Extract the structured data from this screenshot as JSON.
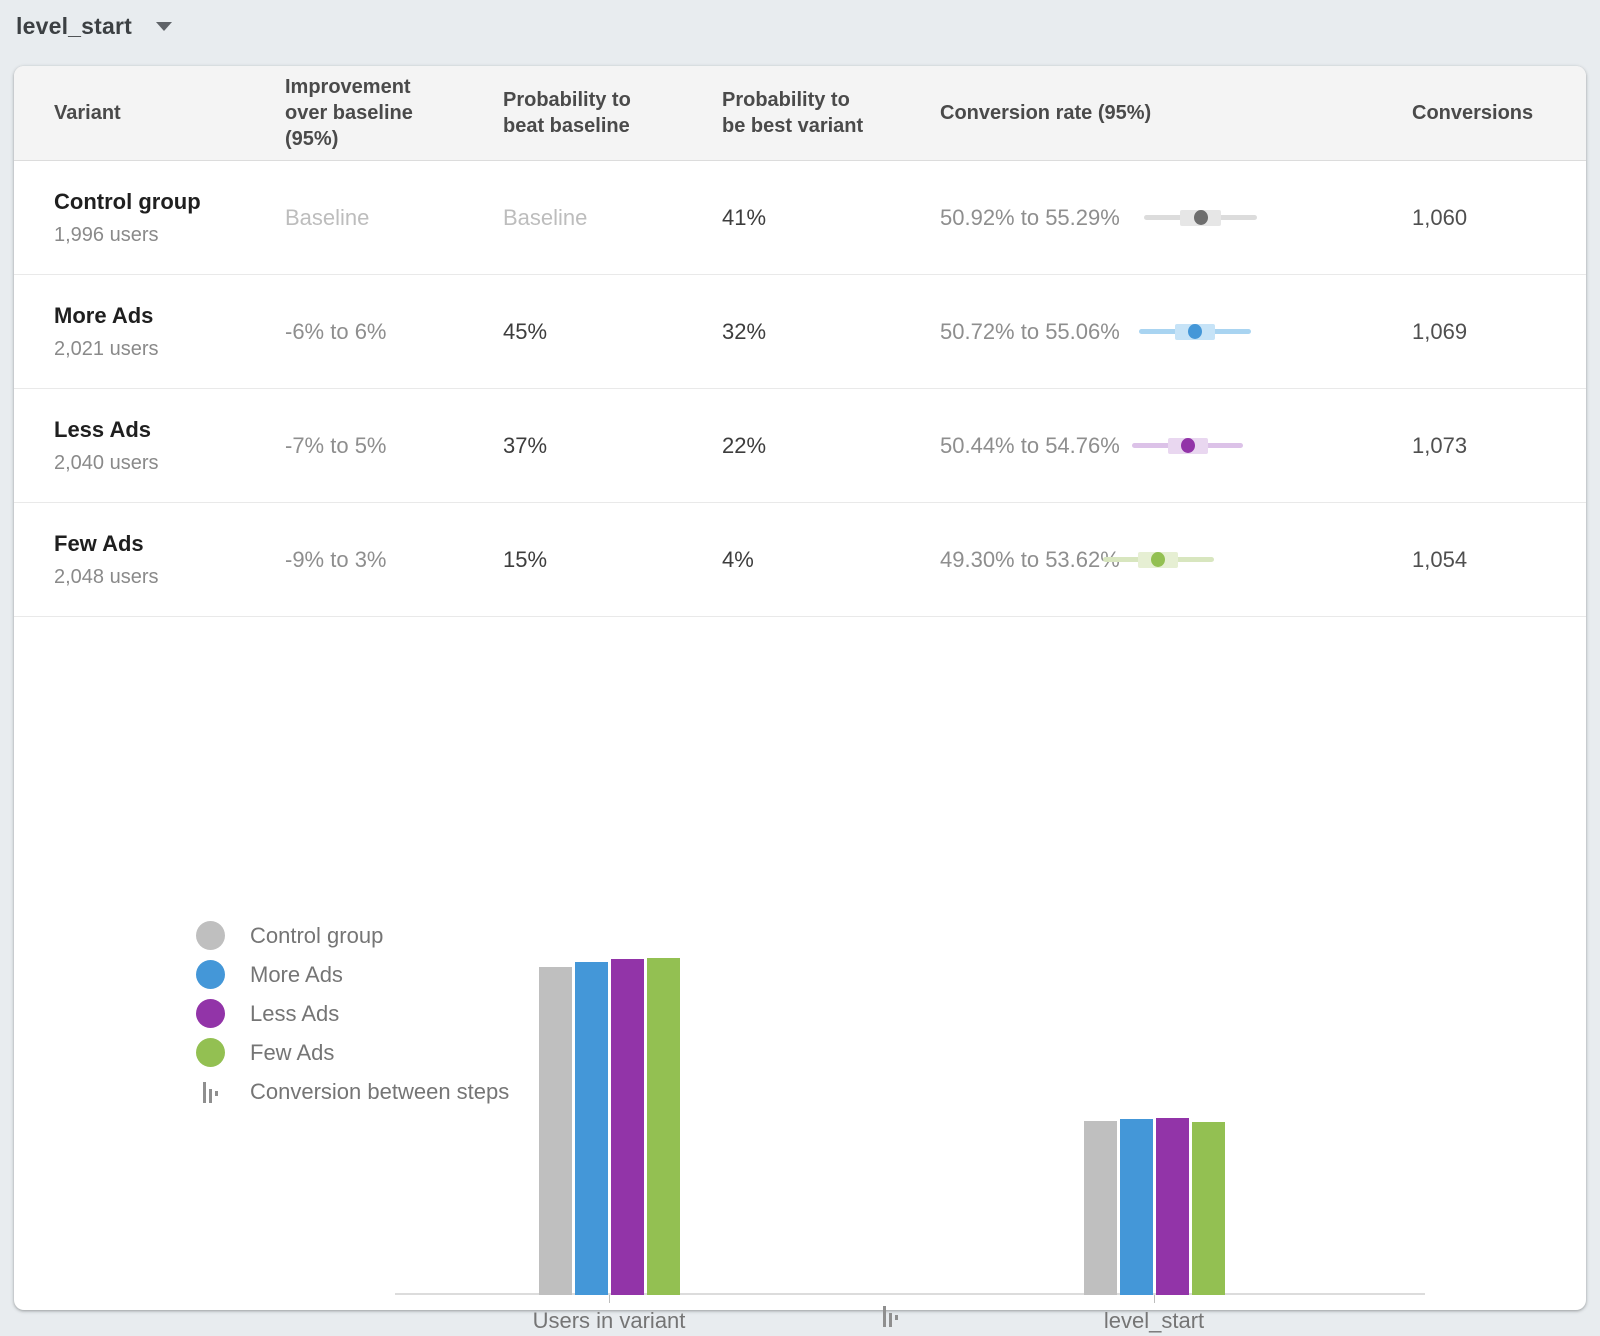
{
  "page": {
    "selector_label": "level_start"
  },
  "table": {
    "columns": [
      {
        "label": "Variant"
      },
      {
        "label": "Improvement over baseline (95%)"
      },
      {
        "label": "Probability to beat baseline"
      },
      {
        "label": "Probability to be best variant"
      },
      {
        "label": "Conversion rate (95%)"
      },
      {
        "label": "Conversions"
      }
    ],
    "ci_axis": {
      "min": 49.0,
      "max": 55.6
    },
    "rows": [
      {
        "variant": "Control group",
        "users": "1,996 users",
        "improvement": "Baseline",
        "prob_beat": "Baseline",
        "prob_best": "41%",
        "rate_range": "50.92% to 55.29%",
        "rate_low": 50.92,
        "rate_high": 55.29,
        "conversions": "1,060",
        "color": "#6e6e6e",
        "ci_line": "#dcdcdc",
        "ci_box": "#e6e6e6"
      },
      {
        "variant": "More Ads",
        "users": "2,021 users",
        "improvement": "-6% to 6%",
        "prob_beat": "45%",
        "prob_best": "32%",
        "rate_range": "50.72% to 55.06%",
        "rate_low": 50.72,
        "rate_high": 55.06,
        "conversions": "1,069",
        "color": "#4497d8",
        "ci_line": "#a9d4f1",
        "ci_box": "#c6e3f7"
      },
      {
        "variant": "Less Ads",
        "users": "2,040 users",
        "improvement": "-7% to 5%",
        "prob_beat": "37%",
        "prob_best": "22%",
        "rate_range": "50.44% to 54.76%",
        "rate_low": 50.44,
        "rate_high": 54.76,
        "conversions": "1,073",
        "color": "#9234a8",
        "ci_line": "#dcc2e8",
        "ci_box": "#e9d7f0"
      },
      {
        "variant": "Few Ads",
        "users": "2,048 users",
        "improvement": "-9% to 3%",
        "prob_beat": "15%",
        "prob_best": "4%",
        "rate_range": "49.30% to 53.62%",
        "rate_low": 49.3,
        "rate_high": 53.62,
        "conversions": "1,054",
        "color": "#93c052",
        "ci_line": "#d8e6bf",
        "ci_box": "#e6efd3"
      }
    ]
  },
  "legend": {
    "steps_label": "Conversion between steps"
  },
  "chart_data": {
    "type": "bar",
    "categories": [
      "Users in variant",
      "level_start"
    ],
    "series": [
      {
        "name": "Control group",
        "color": "#bfbfbf",
        "values": [
          1996,
          1060
        ]
      },
      {
        "name": "More Ads",
        "color": "#4497d8",
        "values": [
          2021,
          1069
        ]
      },
      {
        "name": "Less Ads",
        "color": "#9234a8",
        "values": [
          2040,
          1073
        ]
      },
      {
        "name": "Few Ads",
        "color": "#93c052",
        "values": [
          2048,
          1054
        ]
      }
    ],
    "ylim": [
      0,
      2048
    ],
    "grid": false,
    "legend_position": "left"
  }
}
